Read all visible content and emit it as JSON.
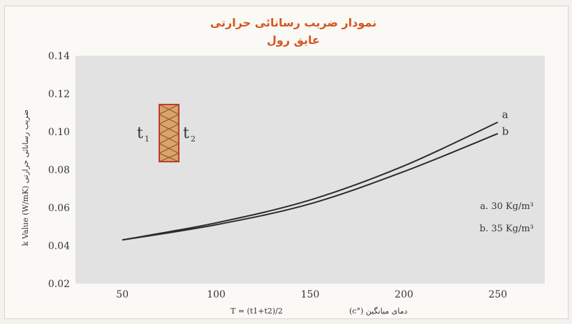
{
  "colors": {
    "plot_bg": "#e2e2e2",
    "title": "#d4561f",
    "line": "#2a2a2a",
    "insulation": "#d9a36b",
    "insulation_edge": "#c0392b"
  },
  "icons": {
    "insulation": "insulation-roll-icon"
  },
  "chart_data": {
    "type": "line",
    "title": [
      "نمودار ضریب رسانائی حرارتی",
      "عایق رول"
    ],
    "ylabel": "k Value (W/mK) ضریب رسانائی حرارتی",
    "xlabel": "دمای میانگین (°c)",
    "xlabel_formula": "T = (t1+t2)/2",
    "x_ticks": [
      "50",
      "100",
      "150",
      "200",
      "250"
    ],
    "y_ticks": [
      "0.02",
      "0.04",
      "0.06",
      "0.08",
      "0.10",
      "0.12",
      "0.14"
    ],
    "xlim": [
      25,
      275
    ],
    "ylim": [
      0.02,
      0.14
    ],
    "grid": false,
    "series": [
      {
        "name": "a",
        "x": [
          50,
          100,
          150,
          200,
          250
        ],
        "y": [
          0.043,
          0.052,
          0.064,
          0.082,
          0.105
        ]
      },
      {
        "name": "b",
        "x": [
          50,
          100,
          150,
          200,
          250
        ],
        "y": [
          0.043,
          0.051,
          0.062,
          0.079,
          0.099
        ]
      }
    ],
    "legend": [
      {
        "key": "a",
        "label": "a. 30 Kg/m³"
      },
      {
        "key": "b",
        "label": "b. 35 Kg/m³"
      }
    ],
    "inset": {
      "left_label": "t",
      "left_sub": "1",
      "right_label": "t",
      "right_sub": "2"
    }
  }
}
